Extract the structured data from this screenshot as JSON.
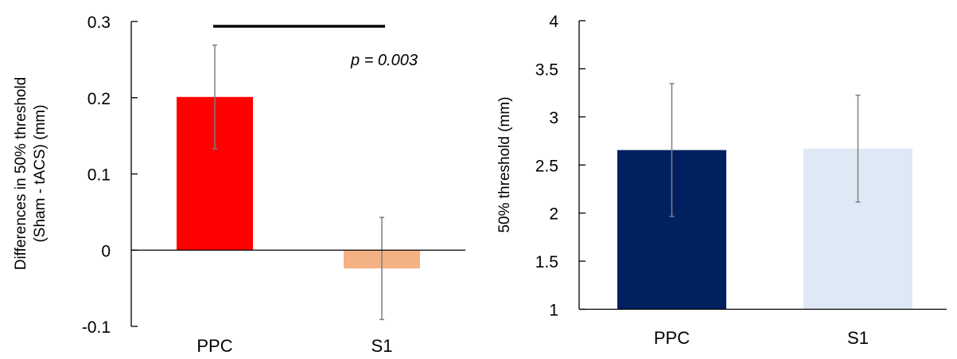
{
  "chart_data": [
    {
      "type": "bar",
      "categories": [
        "PPC",
        "S1"
      ],
      "values": [
        0.201,
        -0.024
      ],
      "errors": [
        0.068,
        0.067
      ],
      "colors": [
        "#ff0000",
        "#f4b183"
      ],
      "ylabel_lines": [
        "Differences in 50% threshold",
        "(Sham - tACS) (mm)"
      ],
      "ylim": [
        -0.1,
        0.3
      ],
      "yticks": [
        "-0.1",
        "0",
        "0.1",
        "0.2",
        "0.3"
      ],
      "ytick_values": [
        -0.1,
        0,
        0.1,
        0.2,
        0.3
      ],
      "annotation": "p = 0.003",
      "significance_bracket": [
        "PPC",
        "S1"
      ]
    },
    {
      "type": "bar",
      "categories": [
        "PPC",
        "S1"
      ],
      "values": [
        2.655,
        2.67
      ],
      "errors": [
        0.69,
        0.555
      ],
      "colors": [
        "#002060",
        "#dee9f5"
      ],
      "ylabel": "50% threshold (mm)",
      "ylim": [
        1,
        4
      ],
      "yticks": [
        "1",
        "1.5",
        "2",
        "2.5",
        "3",
        "3.5",
        "4"
      ],
      "ytick_values": [
        1,
        1.5,
        2,
        2.5,
        3,
        3.5,
        4
      ]
    }
  ]
}
